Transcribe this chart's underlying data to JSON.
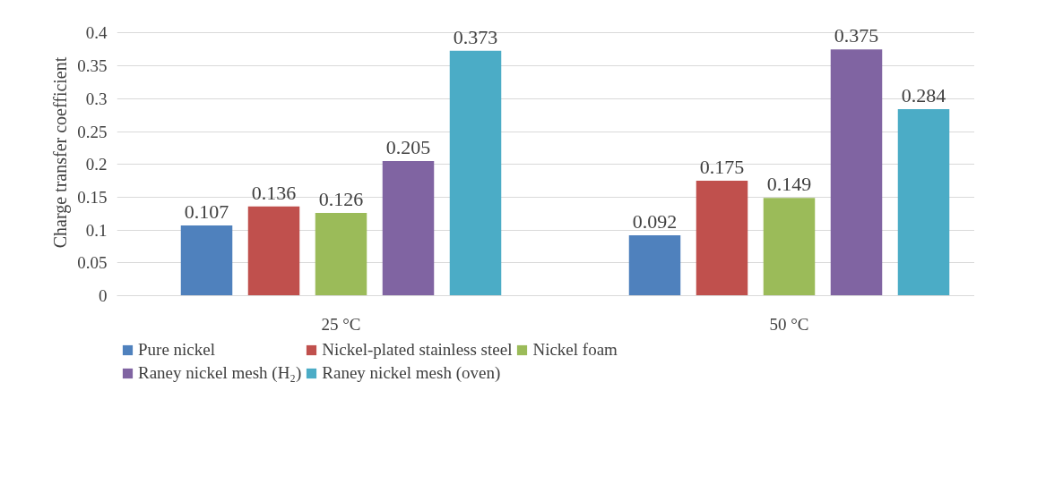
{
  "chart_data": {
    "type": "bar",
    "ylabel": "Charge transfer coefficient",
    "categories": [
      "25 °C",
      "50 °C"
    ],
    "series": [
      {
        "name": "Pure nickel",
        "color": "#4f81bd",
        "values": [
          0.107,
          0.092
        ]
      },
      {
        "name": "Nickel-plated stainless steel",
        "color": "#c0504d",
        "values": [
          0.136,
          0.175
        ]
      },
      {
        "name": "Nickel foam",
        "color": "#9bbb59",
        "values": [
          0.126,
          0.149
        ]
      },
      {
        "name": "Raney nickel mesh (H₂)",
        "color": "#8064a2",
        "values": [
          0.205,
          0.375
        ]
      },
      {
        "name": "Raney nickel mesh (oven)",
        "color": "#4bacc6",
        "values": [
          0.373,
          0.284
        ]
      }
    ],
    "ylim": [
      0,
      0.4
    ],
    "yticks": [
      0,
      0.05,
      0.1,
      0.15,
      0.2,
      0.25,
      0.3,
      0.35,
      0.4
    ],
    "grid": "y",
    "legend": "bottom",
    "data_labels": true
  }
}
